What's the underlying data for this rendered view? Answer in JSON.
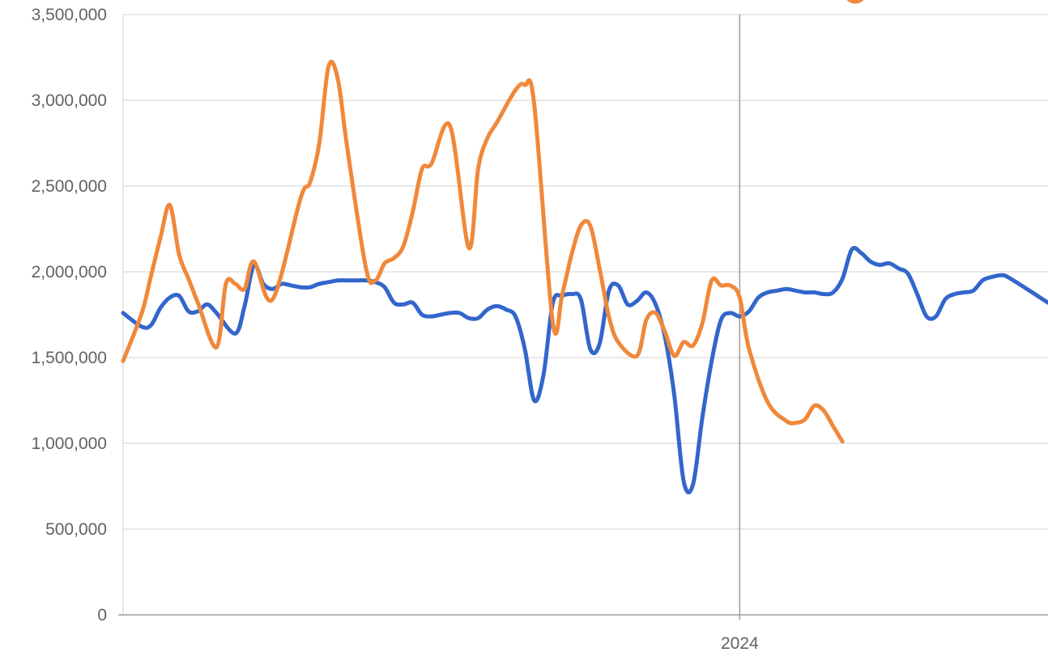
{
  "chart_data": {
    "type": "line",
    "title": "",
    "xlabel": "",
    "ylabel": "",
    "ylim": [
      0,
      3500000
    ],
    "yticks": [
      0,
      500000,
      1000000,
      1500000,
      2000000,
      2500000,
      3000000,
      3500000
    ],
    "ytick_labels": [
      "0",
      "500,000",
      "1,000,000",
      "1,500,000",
      "2,000,000",
      "2,500,000",
      "3,000,000",
      "3,500,000"
    ],
    "x_index_range": [
      0,
      99
    ],
    "year_marker": {
      "label": "2024",
      "index": 66
    },
    "grid": true,
    "legend": "hidden",
    "series": [
      {
        "color": "#3366cc",
        "values": [
          1760000,
          1680000,
          1690000,
          1790000,
          1850000,
          1860000,
          1770000,
          1770000,
          1810000,
          1760000,
          1640000,
          1800000,
          2040000,
          1930000,
          1900000,
          1930000,
          1920000,
          1910000,
          1910000,
          1930000,
          1940000,
          1950000,
          1950000,
          1950000,
          1950000,
          1940000,
          1910000,
          1820000,
          1810000,
          1820000,
          1750000,
          1740000,
          1750000,
          1760000,
          1760000,
          1730000,
          1730000,
          1780000,
          1800000,
          1780000,
          1740000,
          1550000,
          1250000,
          1400000,
          1820000,
          1860000,
          1870000,
          1840000,
          1550000,
          1580000,
          1890000,
          1920000,
          1810000,
          1830000,
          1880000,
          1810000,
          1620000,
          1280000,
          780000,
          760000,
          1150000,
          1480000,
          1720000,
          1760000,
          1740000,
          1770000,
          1850000,
          1880000,
          1890000,
          1900000,
          1890000,
          1880000,
          1880000,
          1870000,
          1880000,
          1960000,
          2130000,
          2110000,
          2060000,
          2040000,
          2050000,
          2020000,
          1990000,
          1870000,
          1740000,
          1740000,
          1840000,
          1870000,
          1880000,
          1890000,
          1950000,
          1970000,
          1980000,
          1960000,
          1820000
        ],
        "x_indices": [
          0,
          2,
          3,
          4,
          5,
          6,
          7,
          8,
          9,
          10,
          12,
          13,
          14,
          15,
          16,
          17,
          18,
          19,
          20,
          21,
          22,
          23,
          24,
          25,
          26,
          27,
          28,
          29,
          30,
          31,
          32,
          33,
          34,
          35,
          36,
          37,
          38,
          39,
          40,
          41,
          42,
          43,
          44,
          45,
          46,
          47,
          48,
          49,
          50,
          51,
          52,
          53,
          54,
          55,
          56,
          57,
          58,
          59,
          60,
          61,
          62,
          63,
          64,
          65,
          66,
          67,
          68,
          69,
          70,
          71,
          72,
          73,
          74,
          75,
          76,
          77,
          78,
          79,
          80,
          81,
          82,
          83,
          84,
          85,
          86,
          87,
          88,
          89,
          90,
          91,
          92,
          93,
          94,
          95,
          99
        ]
      },
      {
        "color": "#f0883a",
        "values": [
          1480000,
          1760000,
          1980000,
          2200000,
          2390000,
          2100000,
          1960000,
          1820000,
          1560000,
          1930000,
          1930000,
          1900000,
          2060000,
          1840000,
          2430000,
          2520000,
          2750000,
          3200000,
          3120000,
          2720000,
          2020000,
          1950000,
          2050000,
          2080000,
          2150000,
          2350000,
          2600000,
          2630000,
          2850000,
          2140000,
          2600000,
          2780000,
          2870000,
          3060000,
          3090000,
          2980000,
          1700000,
          1870000,
          2100000,
          2270000,
          2270000,
          2020000,
          1740000,
          1590000,
          1510000,
          1720000,
          1760000,
          1650000,
          1510000,
          1590000,
          1570000,
          1700000,
          1950000,
          1920000,
          1920000,
          1850000,
          1550000,
          1240000,
          1130000,
          1120000,
          1140000,
          1220000,
          1190000,
          1100000,
          1010000
        ],
        "x_indices": [
          0,
          2,
          3,
          4,
          5,
          6,
          7,
          8,
          10,
          11,
          12,
          13,
          14,
          16,
          19,
          20,
          21,
          22,
          23,
          24,
          26,
          27,
          28,
          29,
          30,
          31,
          32,
          33,
          35,
          37,
          38,
          39,
          40,
          42,
          43,
          44,
          46,
          47,
          48,
          49,
          50,
          51,
          52,
          53,
          55,
          56,
          57,
          58,
          59,
          60,
          61,
          62,
          63,
          64,
          65,
          66,
          67,
          69,
          71,
          72,
          73,
          74,
          75,
          76,
          77
        ]
      }
    ]
  }
}
